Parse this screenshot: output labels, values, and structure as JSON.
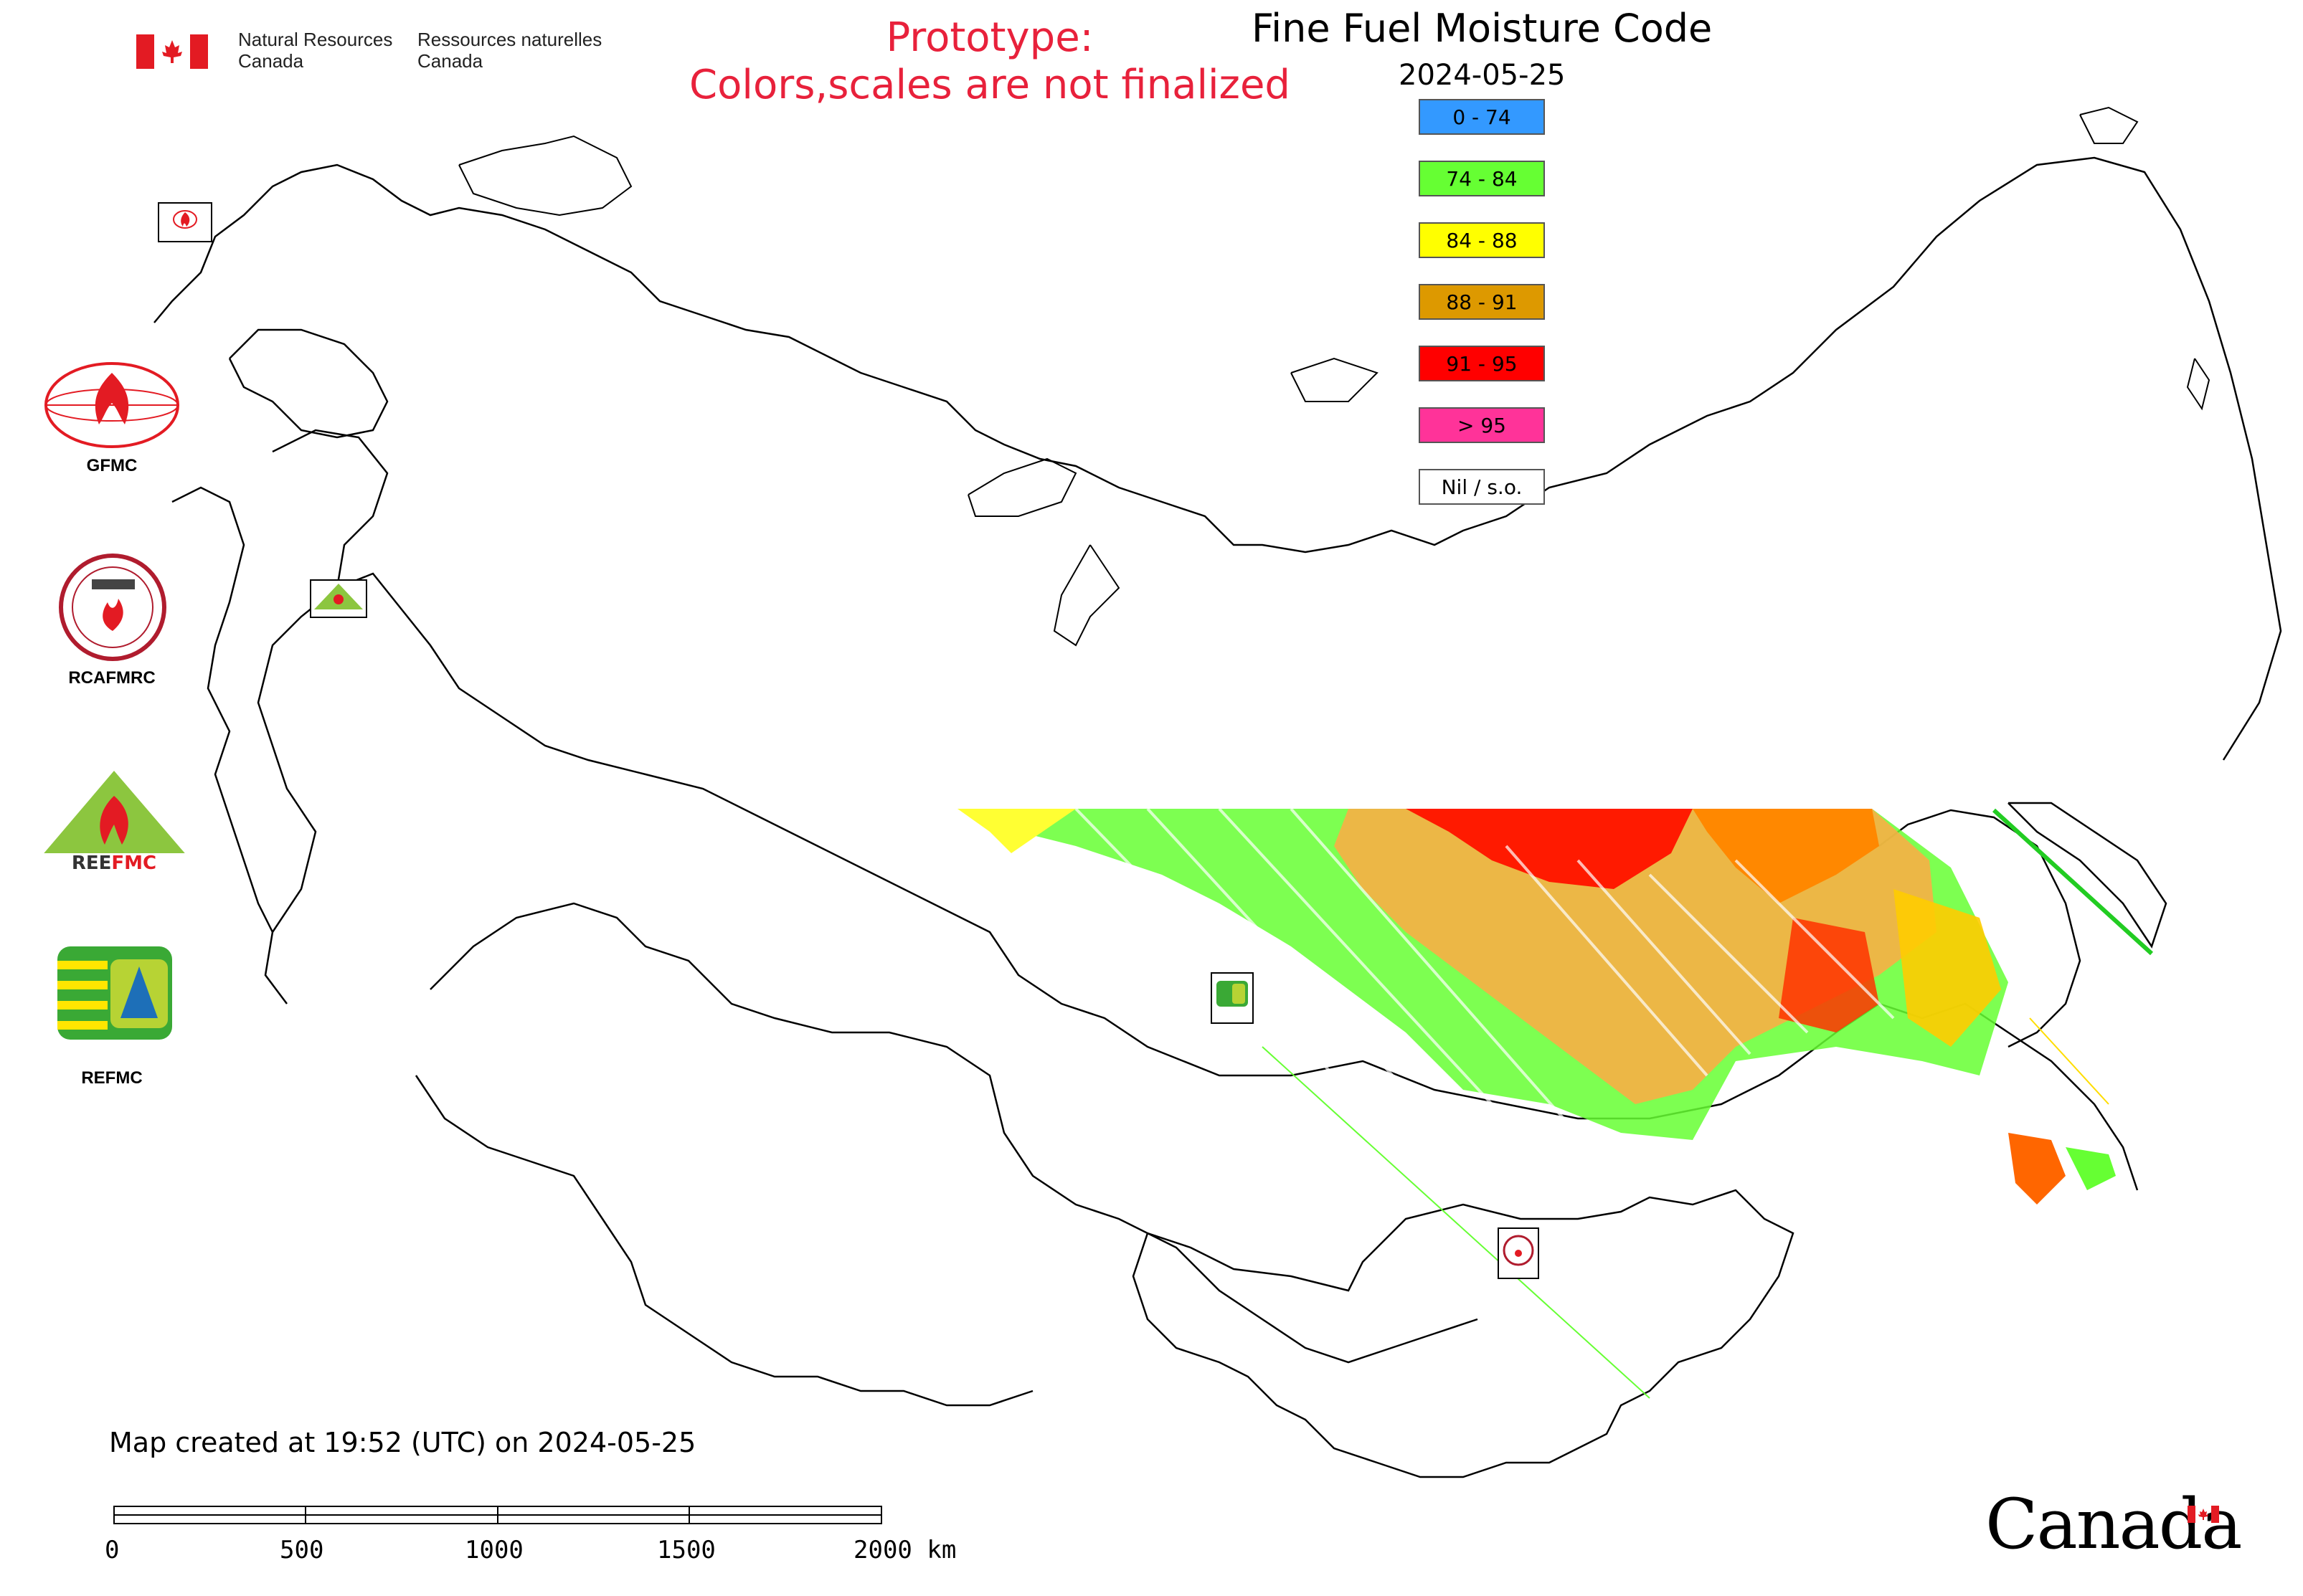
{
  "header": {
    "dept_en": "Natural Resources\nCanada",
    "dept_fr": "Ressources naturelles\nCanada",
    "prototype_line1": "Prototype:",
    "prototype_line2": "Colors,scales are not finalized",
    "title": "Fine Fuel Moisture Code",
    "date": "2024-05-25"
  },
  "legend": [
    {
      "label": "0 - 74",
      "color": "#3399ff"
    },
    {
      "label": "74 - 84",
      "color": "#66ff33"
    },
    {
      "label": "84 - 88",
      "color": "#ffff00"
    },
    {
      "label": "88 - 91",
      "color": "#dd9900"
    },
    {
      "label": "91 - 95",
      "color": "#ff0000"
    },
    {
      "label": "> 95",
      "color": "#ff3399"
    },
    {
      "label": "Nil / s.o.",
      "color": "#ffffff"
    }
  ],
  "logos": [
    {
      "label": "GFMC",
      "icon": "gfmc-logo-icon"
    },
    {
      "label": "RCAFMRC",
      "icon": "rcafmrc-logo-icon"
    },
    {
      "label": "",
      "icon": "reefmc-logo-icon"
    },
    {
      "label": "REFMC",
      "icon": "refmc-logo-icon"
    }
  ],
  "map_markers": [
    {
      "label": "GFMC",
      "icon": "gfmc-marker-icon"
    },
    {
      "label": "REEFMC",
      "icon": "reefmc-marker-icon"
    },
    {
      "label": "REFMC",
      "icon": "refmc-marker-icon"
    },
    {
      "label": "RCAFMRC",
      "icon": "rcafmrc-marker-icon"
    }
  ],
  "footer": {
    "created": "Map created at 19:52 (UTC) on 2024-05-25",
    "scale_ticks": [
      "0",
      "500",
      "1000",
      "1500",
      "2000 km"
    ],
    "wordmark": "Canada"
  },
  "colors": {
    "prototype_text": "#e8213b",
    "flag_red": "#e31b23"
  }
}
